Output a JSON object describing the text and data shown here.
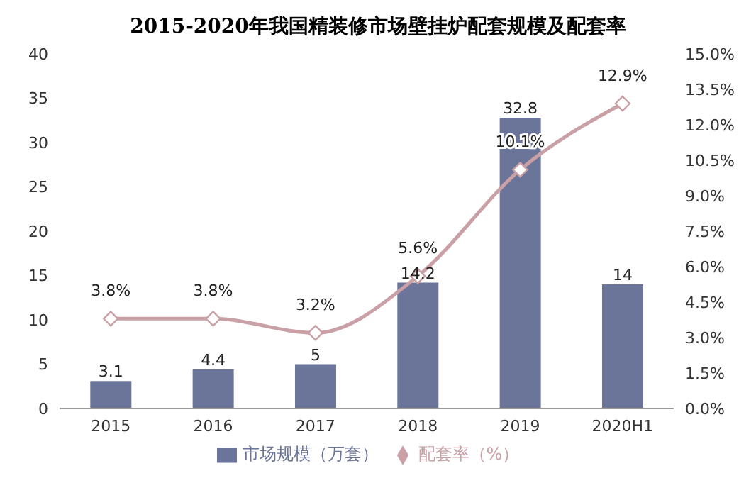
{
  "chart_data": {
    "type": "bar",
    "title": "2015-2020年我国精装修市场壁挂炉配套规模及配套率",
    "categories": [
      "2015",
      "2016",
      "2017",
      "2018",
      "2019",
      "2020H1"
    ],
    "series": [
      {
        "name": "市场规模（万套）",
        "color": "#6b7499",
        "values": [
          3.1,
          4.4,
          5,
          14.2,
          32.8,
          14
        ],
        "value_labels": [
          "3.1",
          "4.4",
          "5",
          "14.2",
          "32.8",
          "14"
        ]
      },
      {
        "name": "配套率（%）",
        "type": "line",
        "axis": "y2",
        "color": "#c9a0a5",
        "marker": "diamond",
        "line_style": "solid",
        "values": [
          3.8,
          3.8,
          3.2,
          5.6,
          10.1,
          12.9
        ],
        "value_labels": [
          "3.8%",
          "3.8%",
          "3.2%",
          "5.6%",
          "10.1%",
          "12.9%"
        ]
      }
    ],
    "ylim": [
      0,
      40
    ],
    "yticks": [
      0,
      5,
      10,
      15,
      20,
      25,
      30,
      35,
      40
    ],
    "y2lim": [
      0,
      15
    ],
    "y2ticks": [
      {
        "value": 0,
        "label": "0.0%"
      },
      {
        "value": 1.5,
        "label": "1.5%"
      },
      {
        "value": 3,
        "label": "3.0%"
      },
      {
        "value": 4.5,
        "label": "4.5%"
      },
      {
        "value": 6,
        "label": "6.0%"
      },
      {
        "value": 7.5,
        "label": "7.5%"
      },
      {
        "value": 9,
        "label": "9.0%"
      },
      {
        "value": 10.5,
        "label": "10.5%"
      },
      {
        "value": 12,
        "label": "12.0%"
      },
      {
        "value": 13.5,
        "label": "13.5%"
      },
      {
        "value": 15,
        "label": "15.0%"
      }
    ],
    "legend": "bottom"
  }
}
